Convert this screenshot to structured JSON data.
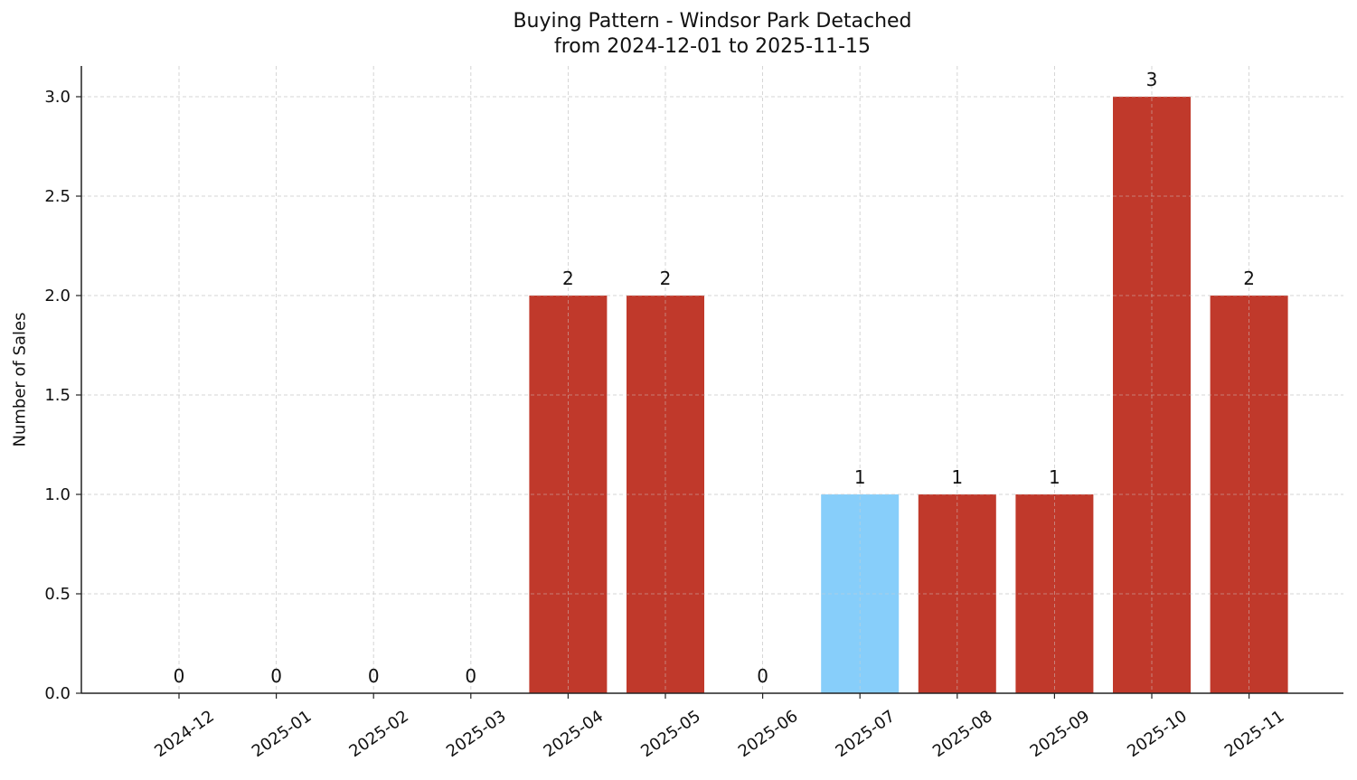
{
  "chart_data": {
    "type": "bar",
    "title": "Buying Pattern - Windsor Park Detached",
    "subtitle": "from 2024-12-01 to 2025-11-15",
    "xlabel": "",
    "ylabel": "Number of Sales",
    "categories": [
      "2024-12",
      "2025-01",
      "2025-02",
      "2025-03",
      "2025-04",
      "2025-05",
      "2025-06",
      "2025-07",
      "2025-08",
      "2025-09",
      "2025-10",
      "2025-11"
    ],
    "values": [
      0,
      0,
      0,
      0,
      2,
      2,
      0,
      1,
      1,
      1,
      3,
      2
    ],
    "bar_colors": [
      "#c0392b",
      "#c0392b",
      "#c0392b",
      "#c0392b",
      "#c0392b",
      "#c0392b",
      "#c0392b",
      "#87cefa",
      "#c0392b",
      "#c0392b",
      "#c0392b",
      "#c0392b"
    ],
    "highlight_category": "2025-07",
    "colors": {
      "default": "#c0392b",
      "highlight": "#87cefa"
    },
    "ylim": [
      0,
      3.15
    ],
    "yticks": [
      "0.0",
      "0.5",
      "1.0",
      "1.5",
      "2.0",
      "2.5",
      "3.0"
    ],
    "grid": true,
    "legend": null
  }
}
